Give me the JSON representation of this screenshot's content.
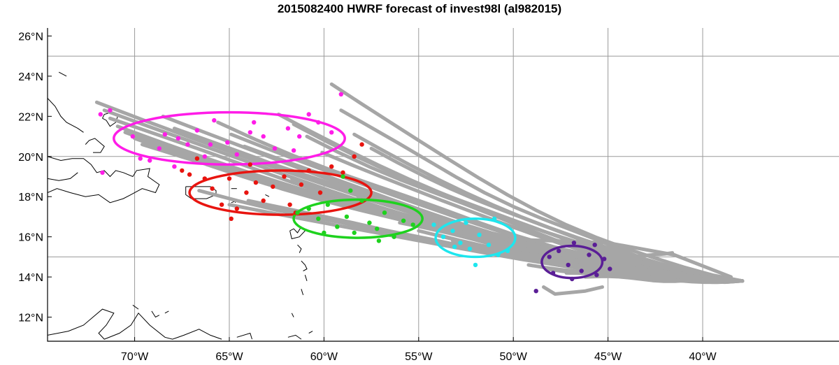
{
  "title": "2015082400 HWRF forecast of invest98l (al982015)",
  "colors": {
    "tracks": "#a6a6a6",
    "grid": "#9a9a9a",
    "coast": "#000000",
    "magenta": "#ff1ce8",
    "red": "#e8140f",
    "green": "#1ed21e",
    "cyan": "#1ee6ee",
    "purple": "#5a1e96"
  },
  "axes": {
    "lon_range": [
      -74.6,
      -32.8
    ],
    "lat_range": [
      10.8,
      26.4
    ],
    "lon_ticks": [
      {
        "value": -70,
        "label": "70°W"
      },
      {
        "value": -65,
        "label": "65°W"
      },
      {
        "value": -60,
        "label": "60°W"
      },
      {
        "value": -55,
        "label": "55°W"
      },
      {
        "value": -50,
        "label": "50°W"
      },
      {
        "value": -45,
        "label": "45°W"
      },
      {
        "value": -40,
        "label": "40°W"
      }
    ],
    "lat_ticks": [
      {
        "value": 12,
        "label": "12°N"
      },
      {
        "value": 14,
        "label": "14°N"
      },
      {
        "value": 16,
        "label": "16°N"
      },
      {
        "value": 18,
        "label": "18°N"
      },
      {
        "value": 20,
        "label": "20°N"
      },
      {
        "value": 22,
        "label": "22°N"
      },
      {
        "value": 24,
        "label": "24°N"
      },
      {
        "value": 26,
        "label": "26°N"
      }
    ],
    "grid_lons": [
      -70,
      -65,
      -60,
      -55,
      -50,
      -45,
      -40
    ],
    "grid_lats": [
      15,
      20,
      25
    ]
  },
  "ellipses": [
    {
      "name": "magenta-ellipse",
      "color": "magenta",
      "center": [
        -65.0,
        20.9
      ],
      "semi_lon": 6.1,
      "semi_lat": 1.3
    },
    {
      "name": "red-ellipse",
      "color": "red",
      "center": [
        -62.3,
        18.2
      ],
      "semi_lon": 4.8,
      "semi_lat": 1.1
    },
    {
      "name": "green-ellipse",
      "color": "green",
      "center": [
        -58.2,
        16.9
      ],
      "semi_lon": 3.4,
      "semi_lat": 0.95
    },
    {
      "name": "cyan-ellipse",
      "color": "cyan",
      "center": [
        -52.0,
        15.95
      ],
      "semi_lon": 2.1,
      "semi_lat": 0.95
    },
    {
      "name": "purple-ellipse",
      "color": "purple",
      "center": [
        -46.9,
        14.75
      ],
      "semi_lon": 1.6,
      "semi_lat": 0.8
    }
  ],
  "track_bundle": {
    "start": [
      -37.9,
      13.8
    ],
    "count": 44,
    "ends": [
      [
        -72.0,
        22.7
      ],
      [
        -71.6,
        22.3
      ],
      [
        -71.3,
        21.9
      ],
      [
        -70.9,
        21.5
      ],
      [
        -70.5,
        21.2
      ],
      [
        -70.0,
        20.9
      ],
      [
        -69.6,
        20.6
      ],
      [
        -68.5,
        22.0
      ],
      [
        -67.9,
        21.4
      ],
      [
        -67.1,
        20.1
      ],
      [
        -66.2,
        19.6
      ],
      [
        -65.6,
        21.7
      ],
      [
        -64.9,
        21.1
      ],
      [
        -64.2,
        20.5
      ],
      [
        -63.3,
        19.8
      ],
      [
        -62.4,
        22.1
      ],
      [
        -61.6,
        21.6
      ],
      [
        -60.9,
        21.0
      ],
      [
        -60.1,
        20.2
      ],
      [
        -59.6,
        23.6
      ],
      [
        -59.1,
        22.3
      ],
      [
        -58.4,
        21.1
      ],
      [
        -57.5,
        20.4
      ],
      [
        -66.6,
        18.3
      ],
      [
        -65.0,
        17.6
      ],
      [
        -64.0,
        17.8
      ],
      [
        -62.8,
        17.4
      ],
      [
        -61.7,
        18.9
      ],
      [
        -60.5,
        18.5
      ],
      [
        -59.4,
        18.2
      ],
      [
        -58.2,
        18.0
      ],
      [
        -57.0,
        17.2
      ],
      [
        -56.0,
        16.7
      ],
      [
        -55.0,
        16.3
      ],
      [
        -54.0,
        16.1
      ],
      [
        -53.2,
        15.8
      ],
      [
        -52.4,
        15.6
      ],
      [
        -51.6,
        15.4
      ],
      [
        -50.9,
        15.2
      ],
      [
        -50.1,
        15.0
      ],
      [
        -49.2,
        14.6
      ],
      [
        -48.2,
        14.4
      ],
      [
        -47.2,
        14.2
      ],
      [
        -46.2,
        14.0
      ]
    ],
    "extras": [
      [
        [
          -48.4,
          13.5
        ],
        [
          -47.8,
          13.15
        ],
        [
          -46.2,
          13.3
        ],
        [
          -45.3,
          13.5
        ]
      ],
      [
        [
          -46.9,
          15.2
        ],
        [
          -44.0,
          15.0
        ],
        [
          -42.0,
          15.15
        ],
        [
          -41.6,
          15.2
        ]
      ],
      [
        [
          -50.8,
          15.9
        ],
        [
          -45.0,
          15.7
        ],
        [
          -41.5,
          15.1
        ],
        [
          -38.5,
          14.0
        ]
      ]
    ]
  },
  "points": {
    "magenta": [
      [
        -71.8,
        22.1
      ],
      [
        -71.3,
        22.3
      ],
      [
        -70.1,
        21.0
      ],
      [
        -69.7,
        19.9
      ],
      [
        -69.2,
        19.8
      ],
      [
        -68.7,
        20.4
      ],
      [
        -68.4,
        21.1
      ],
      [
        -67.9,
        19.5
      ],
      [
        -67.2,
        20.6
      ],
      [
        -66.7,
        21.3
      ],
      [
        -66.3,
        20.0
      ],
      [
        -65.8,
        21.8
      ],
      [
        -65.1,
        20.7
      ],
      [
        -64.6,
        20.1
      ],
      [
        -63.9,
        21.2
      ],
      [
        -63.2,
        21.0
      ],
      [
        -62.6,
        20.4
      ],
      [
        -61.9,
        21.4
      ],
      [
        -61.3,
        21.0
      ],
      [
        -60.8,
        22.1
      ],
      [
        -60.3,
        21.7
      ],
      [
        -59.6,
        21.2
      ],
      [
        -59.1,
        23.1
      ],
      [
        -71.7,
        19.2
      ],
      [
        -67.7,
        20.9
      ],
      [
        -61.6,
        20.3
      ],
      [
        -63.7,
        21.7
      ],
      [
        -66.0,
        20.6
      ]
    ],
    "red": [
      [
        -67.5,
        19.3
      ],
      [
        -67.1,
        19.1
      ],
      [
        -66.7,
        19.9
      ],
      [
        -66.3,
        18.9
      ],
      [
        -65.9,
        18.4
      ],
      [
        -65.4,
        17.6
      ],
      [
        -65.0,
        18.9
      ],
      [
        -64.6,
        17.4
      ],
      [
        -64.1,
        18.2
      ],
      [
        -63.6,
        18.7
      ],
      [
        -63.2,
        17.8
      ],
      [
        -62.7,
        18.5
      ],
      [
        -62.1,
        19.0
      ],
      [
        -61.8,
        17.6
      ],
      [
        -61.2,
        18.6
      ],
      [
        -60.8,
        19.3
      ],
      [
        -60.2,
        18.2
      ],
      [
        -59.6,
        19.5
      ],
      [
        -59.0,
        19.2
      ],
      [
        -58.4,
        20.0
      ],
      [
        -58.0,
        20.6
      ],
      [
        -64.9,
        16.9
      ],
      [
        -61.5,
        17.2
      ],
      [
        -63.9,
        19.6
      ]
    ],
    "green": [
      [
        -61.4,
        17.2
      ],
      [
        -60.8,
        17.4
      ],
      [
        -60.3,
        16.9
      ],
      [
        -59.8,
        17.6
      ],
      [
        -59.3,
        16.5
      ],
      [
        -58.8,
        17.0
      ],
      [
        -58.4,
        16.2
      ],
      [
        -58.0,
        17.8
      ],
      [
        -57.6,
        16.7
      ],
      [
        -57.2,
        16.4
      ],
      [
        -56.8,
        17.2
      ],
      [
        -56.3,
        16.0
      ],
      [
        -55.8,
        16.8
      ],
      [
        -55.3,
        16.6
      ],
      [
        -59.0,
        19.0
      ],
      [
        -57.1,
        15.8
      ],
      [
        -58.6,
        18.3
      ],
      [
        -60.0,
        16.2
      ]
    ],
    "cyan": [
      [
        -54.2,
        16.6
      ],
      [
        -53.7,
        16.0
      ],
      [
        -53.2,
        16.3
      ],
      [
        -52.8,
        15.7
      ],
      [
        -52.3,
        15.4
      ],
      [
        -51.8,
        16.1
      ],
      [
        -51.3,
        15.6
      ],
      [
        -50.8,
        15.1
      ],
      [
        -52.5,
        16.7
      ],
      [
        -53.1,
        15.5
      ],
      [
        -52.0,
        14.6
      ],
      [
        -50.3,
        15.3
      ],
      [
        -51.0,
        16.9
      ]
    ],
    "purple": [
      [
        -48.1,
        15.0
      ],
      [
        -47.6,
        15.3
      ],
      [
        -47.1,
        14.6
      ],
      [
        -46.8,
        15.7
      ],
      [
        -46.4,
        14.3
      ],
      [
        -46.0,
        15.1
      ],
      [
        -45.6,
        14.1
      ],
      [
        -45.2,
        14.9
      ],
      [
        -44.9,
        14.4
      ],
      [
        -47.9,
        14.2
      ],
      [
        -45.7,
        15.6
      ],
      [
        -46.9,
        13.9
      ],
      [
        -48.8,
        13.3
      ]
    ]
  },
  "coastlines": [
    [
      [
        -74.0,
        24.2
      ],
      [
        -73.6,
        24.0
      ]
    ],
    [
      [
        -74.6,
        22.9
      ],
      [
        -74.2,
        22.5
      ],
      [
        -73.9,
        22.0
      ],
      [
        -73.6,
        21.7
      ],
      [
        -73.0,
        21.4
      ],
      [
        -72.7,
        21.2
      ]
    ],
    [
      [
        -71.7,
        21.9
      ],
      [
        -71.5,
        21.8
      ],
      [
        -71.3,
        21.5
      ],
      [
        -71.0,
        21.7
      ],
      [
        -70.9,
        22.0
      ],
      [
        -71.2,
        22.2
      ],
      [
        -71.6,
        22.1
      ],
      [
        -71.7,
        21.9
      ]
    ],
    [
      [
        -72.6,
        20.6
      ],
      [
        -72.4,
        20.8
      ],
      [
        -72.1,
        20.9
      ],
      [
        -71.6,
        20.5
      ],
      [
        -71.8,
        20.2
      ],
      [
        -72.2,
        20.2
      ]
    ],
    [
      [
        -74.6,
        20.0
      ],
      [
        -73.9,
        19.8
      ],
      [
        -73.3,
        19.9
      ],
      [
        -72.7,
        19.9
      ],
      [
        -72.3,
        19.6
      ],
      [
        -72.0,
        19.2
      ],
      [
        -71.6,
        19.3
      ],
      [
        -71.3,
        19.0
      ],
      [
        -71.0,
        19.3
      ],
      [
        -70.6,
        19.2
      ],
      [
        -70.1,
        19.0
      ],
      [
        -69.9,
        19.3
      ],
      [
        -69.2,
        19.4
      ],
      [
        -69.3,
        19.0
      ],
      [
        -68.7,
        18.6
      ],
      [
        -68.9,
        18.2
      ],
      [
        -69.6,
        18.4
      ],
      [
        -70.2,
        18.1
      ],
      [
        -70.6,
        17.9
      ],
      [
        -71.3,
        17.7
      ],
      [
        -71.9,
        18.1
      ],
      [
        -72.6,
        18.0
      ],
      [
        -73.4,
        18.2
      ],
      [
        -74.1,
        18.4
      ],
      [
        -74.6,
        18.2
      ]
    ],
    [
      [
        -74.6,
        18.9
      ],
      [
        -74.0,
        18.8
      ],
      [
        -73.4,
        18.9
      ],
      [
        -73.0,
        19.2
      ]
    ],
    [
      [
        -67.3,
        18.5
      ],
      [
        -66.8,
        18.5
      ],
      [
        -66.0,
        18.5
      ],
      [
        -65.7,
        18.3
      ],
      [
        -65.7,
        18.1
      ],
      [
        -66.2,
        17.9
      ],
      [
        -67.0,
        17.9
      ],
      [
        -67.3,
        18.1
      ],
      [
        -67.3,
        18.5
      ]
    ],
    [
      [
        -64.9,
        18.4
      ],
      [
        -64.6,
        18.4
      ]
    ],
    [
      [
        -64.7,
        17.7
      ],
      [
        -64.6,
        17.8
      ],
      [
        -64.9,
        17.7
      ]
    ],
    [
      [
        -63.1,
        18.1
      ],
      [
        -62.9,
        18.0
      ]
    ],
    [
      [
        -61.9,
        17.1
      ],
      [
        -61.7,
        17.0
      ]
    ],
    [
      [
        -61.8,
        16.3
      ],
      [
        -61.6,
        16.4
      ],
      [
        -61.4,
        16.2
      ],
      [
        -61.2,
        16.5
      ],
      [
        -61.0,
        16.3
      ],
      [
        -61.3,
        16.0
      ],
      [
        -61.7,
        15.9
      ],
      [
        -61.8,
        16.3
      ]
    ],
    [
      [
        -61.4,
        15.6
      ],
      [
        -61.2,
        15.4
      ],
      [
        -61.3,
        15.2
      ]
    ],
    [
      [
        -61.2,
        14.8
      ],
      [
        -61.0,
        14.6
      ],
      [
        -60.9,
        14.4
      ],
      [
        -61.1,
        14.3
      ]
    ],
    [
      [
        -61.0,
        14.1
      ],
      [
        -60.9,
        13.8
      ]
    ],
    [
      [
        -61.2,
        13.4
      ],
      [
        -61.1,
        13.1
      ]
    ],
    [
      [
        -61.7,
        12.2
      ],
      [
        -61.6,
        12.0
      ]
    ],
    [
      [
        -74.6,
        11.1
      ],
      [
        -73.5,
        11.3
      ],
      [
        -72.7,
        11.6
      ],
      [
        -72.2,
        12.0
      ],
      [
        -71.7,
        12.4
      ],
      [
        -71.1,
        12.2
      ],
      [
        -71.5,
        11.6
      ],
      [
        -71.9,
        11.2
      ],
      [
        -71.6,
        10.9
      ],
      [
        -70.8,
        11.2
      ],
      [
        -70.2,
        11.6
      ],
      [
        -69.8,
        12.2
      ],
      [
        -69.2,
        11.6
      ],
      [
        -68.4,
        11.0
      ],
      [
        -68.0,
        10.9
      ],
      [
        -67.4,
        11.1
      ],
      [
        -66.6,
        11.4
      ],
      [
        -66.0,
        11.1
      ],
      [
        -65.4,
        10.9
      ]
    ],
    [
      [
        -70.1,
        12.6
      ],
      [
        -69.8,
        12.4
      ]
    ],
    [
      [
        -69.1,
        12.3
      ],
      [
        -68.9,
        12.0
      ],
      [
        -68.7,
        12.1
      ]
    ],
    [
      [
        -68.4,
        12.2
      ],
      [
        -68.2,
        12.3
      ]
    ],
    [
      [
        -64.6,
        11.0
      ],
      [
        -63.9,
        11.2
      ],
      [
        -63.8,
        10.9
      ]
    ],
    [
      [
        -61.9,
        11.0
      ],
      [
        -61.5,
        11.1
      ],
      [
        -61.2,
        10.9
      ]
    ],
    [
      [
        -60.8,
        11.2
      ],
      [
        -60.6,
        11.3
      ]
    ]
  ]
}
